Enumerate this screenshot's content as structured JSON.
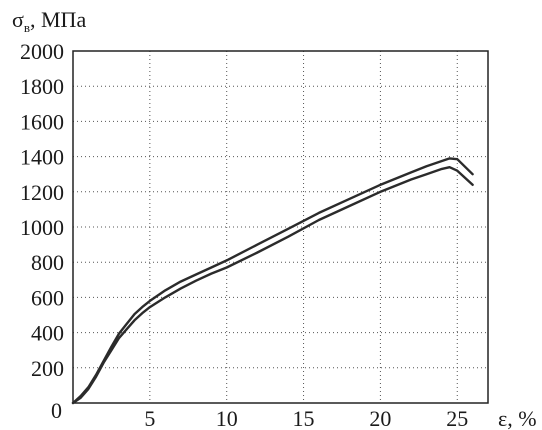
{
  "chart_data": {
    "type": "line",
    "title": "",
    "ylabel_main": "σ",
    "ylabel_subscript": "в",
    "ylabel_unit": ", МПа",
    "xlabel": "ε, %",
    "xlim": [
      0,
      27
    ],
    "ylim": [
      0,
      2000
    ],
    "x_ticks": [
      5,
      10,
      15,
      20,
      25
    ],
    "x_tick_labels": [
      "5",
      "10",
      "15",
      "20",
      "25"
    ],
    "y_ticks": [
      200,
      400,
      600,
      800,
      1000,
      1200,
      1400,
      1600,
      1800,
      2000
    ],
    "y_tick_labels": [
      "200",
      "400",
      "600",
      "800",
      "1000",
      "1200",
      "1400",
      "1600",
      "1800",
      "2000"
    ],
    "origin_label": "0",
    "grid": true,
    "line_color": "#2b2b2b",
    "series": [
      {
        "x": [
          0,
          0.5,
          1,
          1.5,
          2,
          2.5,
          3,
          3.5,
          4,
          4.5,
          5,
          6,
          7,
          8,
          9,
          10,
          12,
          14,
          16,
          18,
          20,
          22,
          23,
          24,
          24.5,
          25,
          26
        ],
        "values": [
          0,
          40,
          90,
          160,
          240,
          320,
          395,
          450,
          505,
          545,
          580,
          640,
          690,
          730,
          770,
          810,
          900,
          990,
          1080,
          1160,
          1240,
          1310,
          1345,
          1375,
          1390,
          1385,
          1300
        ]
      },
      {
        "x": [
          0,
          0.5,
          1,
          1.5,
          2,
          2.5,
          3,
          3.5,
          4,
          4.5,
          5,
          6,
          7,
          8,
          9,
          10,
          12,
          14,
          16,
          18,
          20,
          22,
          23,
          24,
          24.5,
          25,
          26
        ],
        "values": [
          0,
          30,
          80,
          150,
          230,
          300,
          370,
          420,
          470,
          510,
          545,
          600,
          650,
          695,
          735,
          770,
          855,
          945,
          1040,
          1120,
          1200,
          1270,
          1300,
          1330,
          1340,
          1320,
          1240
        ]
      }
    ]
  }
}
